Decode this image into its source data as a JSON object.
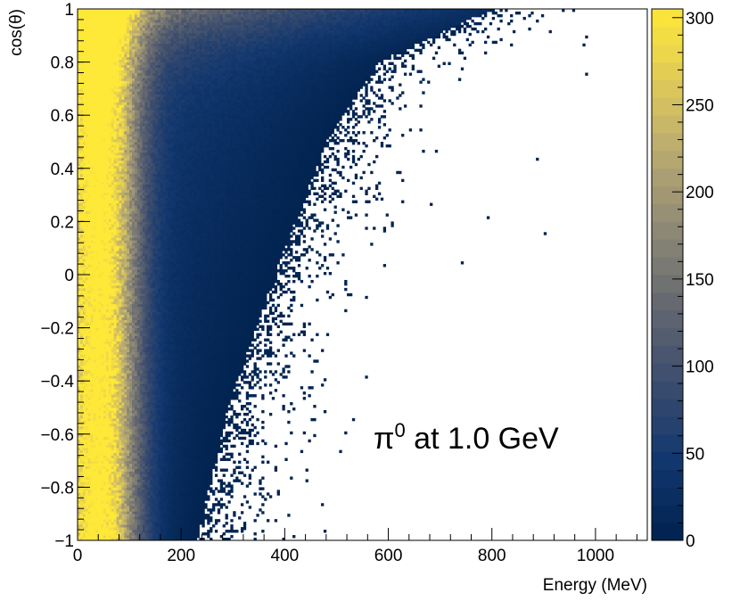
{
  "chart_data": {
    "type": "heatmap",
    "title": "",
    "xlabel": "Energy (MeV)",
    "ylabel": "cos(θ)",
    "xlim": [
      0,
      1100
    ],
    "ylim": [
      -1,
      1
    ],
    "x_ticks": [
      0,
      200,
      400,
      600,
      800,
      1000
    ],
    "x_tick_labels": [
      "0",
      "200",
      "400",
      "600",
      "800",
      "1000"
    ],
    "y_ticks": [
      -1,
      -0.8,
      -0.6,
      -0.4,
      -0.2,
      0,
      0.2,
      0.4,
      0.6,
      0.8,
      1
    ],
    "y_tick_labels": [
      "−1",
      "−0.8",
      "−0.6",
      "−0.4",
      "−0.2",
      "0",
      "0.2",
      "0.4",
      "0.6",
      "0.8",
      "1"
    ],
    "colorbar": {
      "range": [
        0,
        305
      ],
      "ticks": [
        0,
        50,
        100,
        150,
        200,
        250,
        300
      ],
      "tick_labels": [
        "0",
        "50",
        "100",
        "150",
        "200",
        "250",
        "300"
      ],
      "palette": "cividis",
      "low_color": "#00224e",
      "mid_color": "#7c7b78",
      "high_color": "#fee838"
    },
    "annotation": {
      "particle": "π",
      "superscript": "0",
      "text": " at 1.0 GeV"
    },
    "data_model": {
      "description": "2D histogram of cos(theta) vs energy; max energy edge rises from ~230 MeV at cos=-1 to ~800 MeV at cos=1",
      "edge_points": [
        [
          -1,
          230
        ],
        [
          -0.5,
          290
        ],
        [
          0,
          380
        ],
        [
          0.5,
          480
        ],
        [
          0.8,
          580
        ],
        [
          1,
          800
        ]
      ],
      "peak_energy_MeV": 40,
      "peak_value": 305
    }
  }
}
